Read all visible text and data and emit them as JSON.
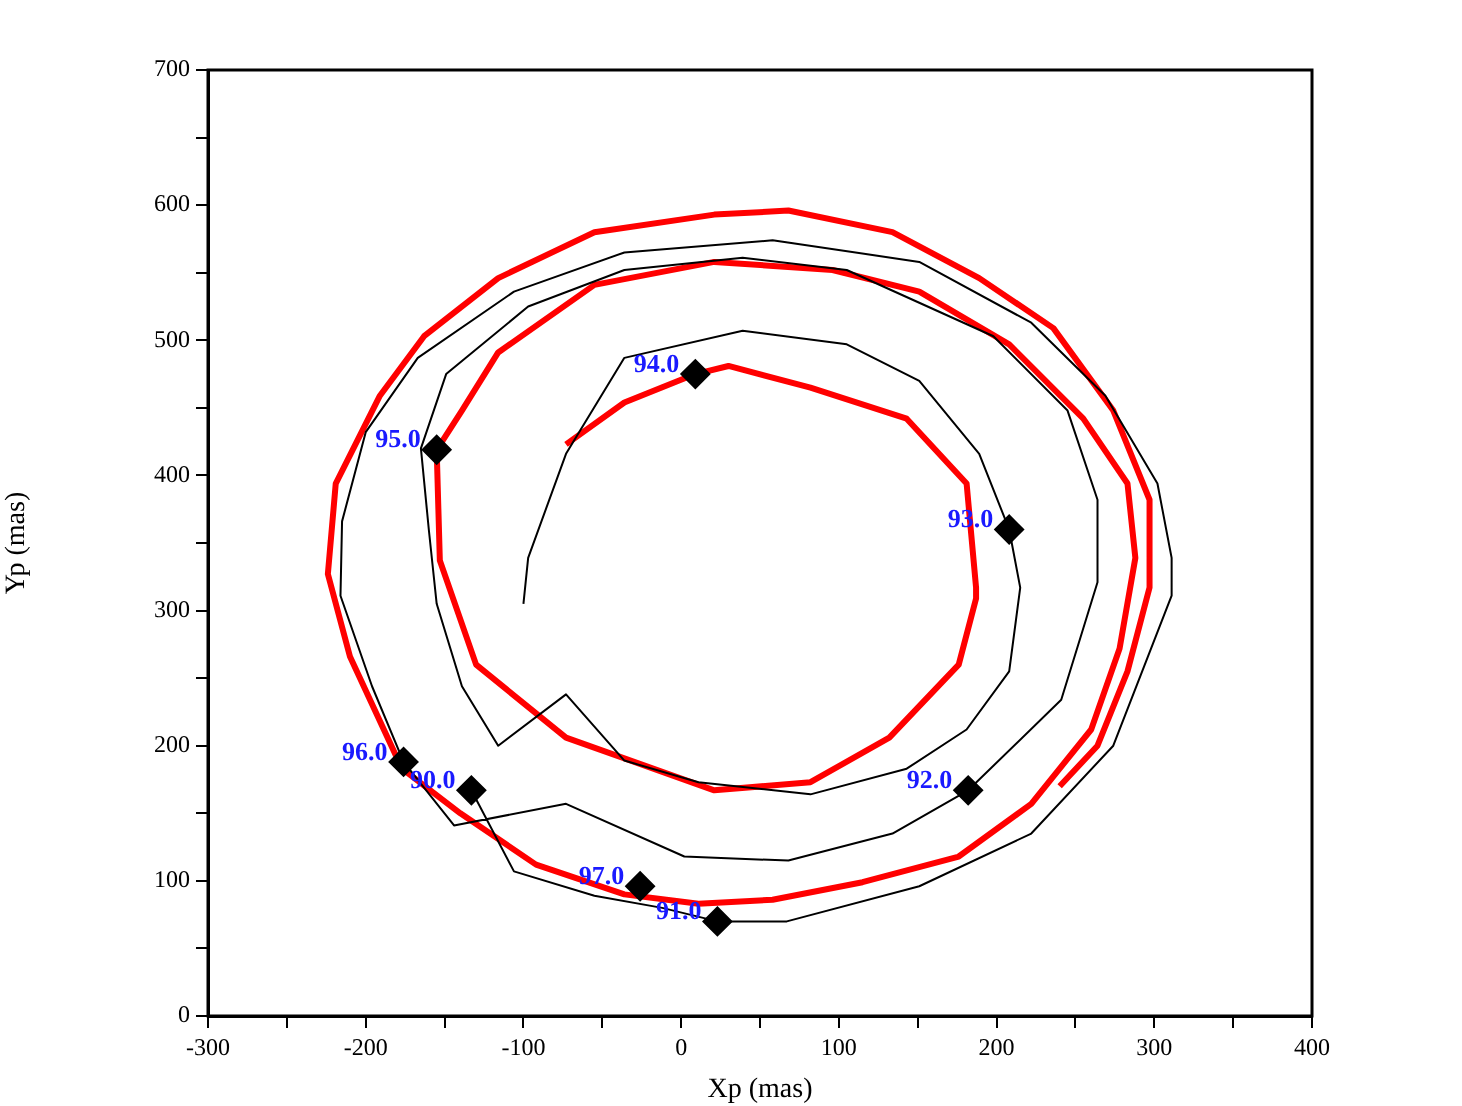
{
  "chart_data": {
    "type": "line",
    "xlabel": "Xp (mas)",
    "ylabel": "Yp (mas)",
    "xlim": [
      -300,
      400
    ],
    "xticks": [
      -300,
      {
        "value": -250,
        "label": null
      },
      -200,
      {
        "value": -150,
        "label": null
      },
      -100,
      {
        "value": -50,
        "label": null
      },
      0,
      {
        "value": 50,
        "label": null
      },
      100,
      {
        "value": 150,
        "label": null
      },
      200,
      {
        "value": 250,
        "label": null
      },
      300,
      {
        "value": 350,
        "label": null
      },
      400
    ],
    "ylim": [
      0,
      700
    ],
    "yticks": [
      0,
      {
        "value": 50,
        "label": null
      },
      100,
      {
        "value": 150,
        "label": null
      },
      200,
      {
        "value": 250,
        "label": null
      },
      300,
      {
        "value": 350,
        "label": null
      },
      400,
      {
        "value": 450,
        "label": null
      },
      500,
      {
        "value": 550,
        "label": null
      },
      600,
      {
        "value": 650,
        "label": null
      },
      700
    ],
    "grid": false,
    "legend": false,
    "series": [
      {
        "type": "line",
        "color": "#ff0000",
        "line_style": "solid",
        "marker": "none",
        "x": [
          -73,
          -36,
          9,
          30,
          82,
          143,
          181,
          187,
          187,
          176,
          132,
          82,
          21,
          -73,
          -130,
          -153,
          -155,
          -139,
          -116,
          -55,
          21,
          96,
          151,
          208,
          255,
          283,
          288,
          278,
          260,
          222,
          176,
          115,
          58,
          11,
          -36,
          -92,
          -140,
          -177,
          -210,
          -224,
          -219,
          -191,
          -163,
          -116,
          -55,
          21,
          68,
          134,
          189,
          236,
          274,
          297,
          297,
          283,
          264,
          240
        ],
        "values": [
          423,
          454,
          475,
          481,
          465,
          442,
          394,
          317,
          309,
          260,
          206,
          173,
          167,
          206,
          260,
          337,
          419,
          448,
          491,
          541,
          558,
          552,
          536,
          497,
          442,
          394,
          339,
          272,
          212,
          157,
          118,
          99,
          86,
          83,
          90,
          112,
          150,
          183,
          266,
          327,
          394,
          459,
          503,
          546,
          580,
          593,
          596,
          580,
          546,
          509,
          448,
          382,
          317,
          255,
          200,
          170
        ]
      },
      {
        "type": "line",
        "color": "#000000",
        "line_style": "solid",
        "marker": "none",
        "x": [
          -133,
          -106,
          -55,
          -12,
          23,
          67,
          151,
          222,
          274,
          311,
          311,
          302,
          269,
          222,
          151,
          58,
          -36,
          -106,
          -167,
          -200,
          -215,
          -216,
          -196,
          -176,
          -144,
          -73,
          2,
          68,
          134,
          182,
          241,
          264,
          264,
          245,
          198,
          105,
          39,
          -36,
          -97,
          -149,
          -165,
          -160,
          -155,
          -139,
          -116,
          -73,
          -36,
          11,
          82,
          143,
          181,
          208,
          215,
          208,
          189,
          151,
          105,
          39,
          -36,
          -73,
          -97,
          -100
        ],
        "values": [
          167,
          107,
          89,
          80,
          70,
          70,
          96,
          135,
          200,
          311,
          339,
          394,
          459,
          513,
          558,
          574,
          565,
          536,
          487,
          432,
          366,
          311,
          244,
          188,
          141,
          157,
          118,
          115,
          135,
          167,
          234,
          321,
          382,
          448,
          503,
          552,
          561,
          552,
          525,
          475,
          420,
          360,
          305,
          244,
          200,
          238,
          189,
          173,
          164,
          183,
          212,
          255,
          317,
          360,
          416,
          470,
          497,
          507,
          487,
          416,
          339,
          305
        ]
      },
      {
        "type": "scatter",
        "color": "#000000",
        "marker": "diamond",
        "x": [
          -133,
          23,
          182,
          208,
          9,
          -155,
          -176,
          -26
        ],
        "values": [
          167,
          70,
          167,
          360,
          475,
          419,
          188,
          96
        ]
      }
    ],
    "annotations": [
      {
        "text": "90.0",
        "x": -133,
        "y": 167
      },
      {
        "text": "91.0",
        "x": 23,
        "y": 70
      },
      {
        "text": "92.0",
        "x": 182,
        "y": 167
      },
      {
        "text": "93.0",
        "x": 208,
        "y": 360
      },
      {
        "text": "94.0",
        "x": 9,
        "y": 475
      },
      {
        "text": "95.0",
        "x": -155,
        "y": 419
      },
      {
        "text": "96.0",
        "x": -176,
        "y": 188
      },
      {
        "text": "97.0",
        "x": -26,
        "y": 96
      }
    ]
  }
}
